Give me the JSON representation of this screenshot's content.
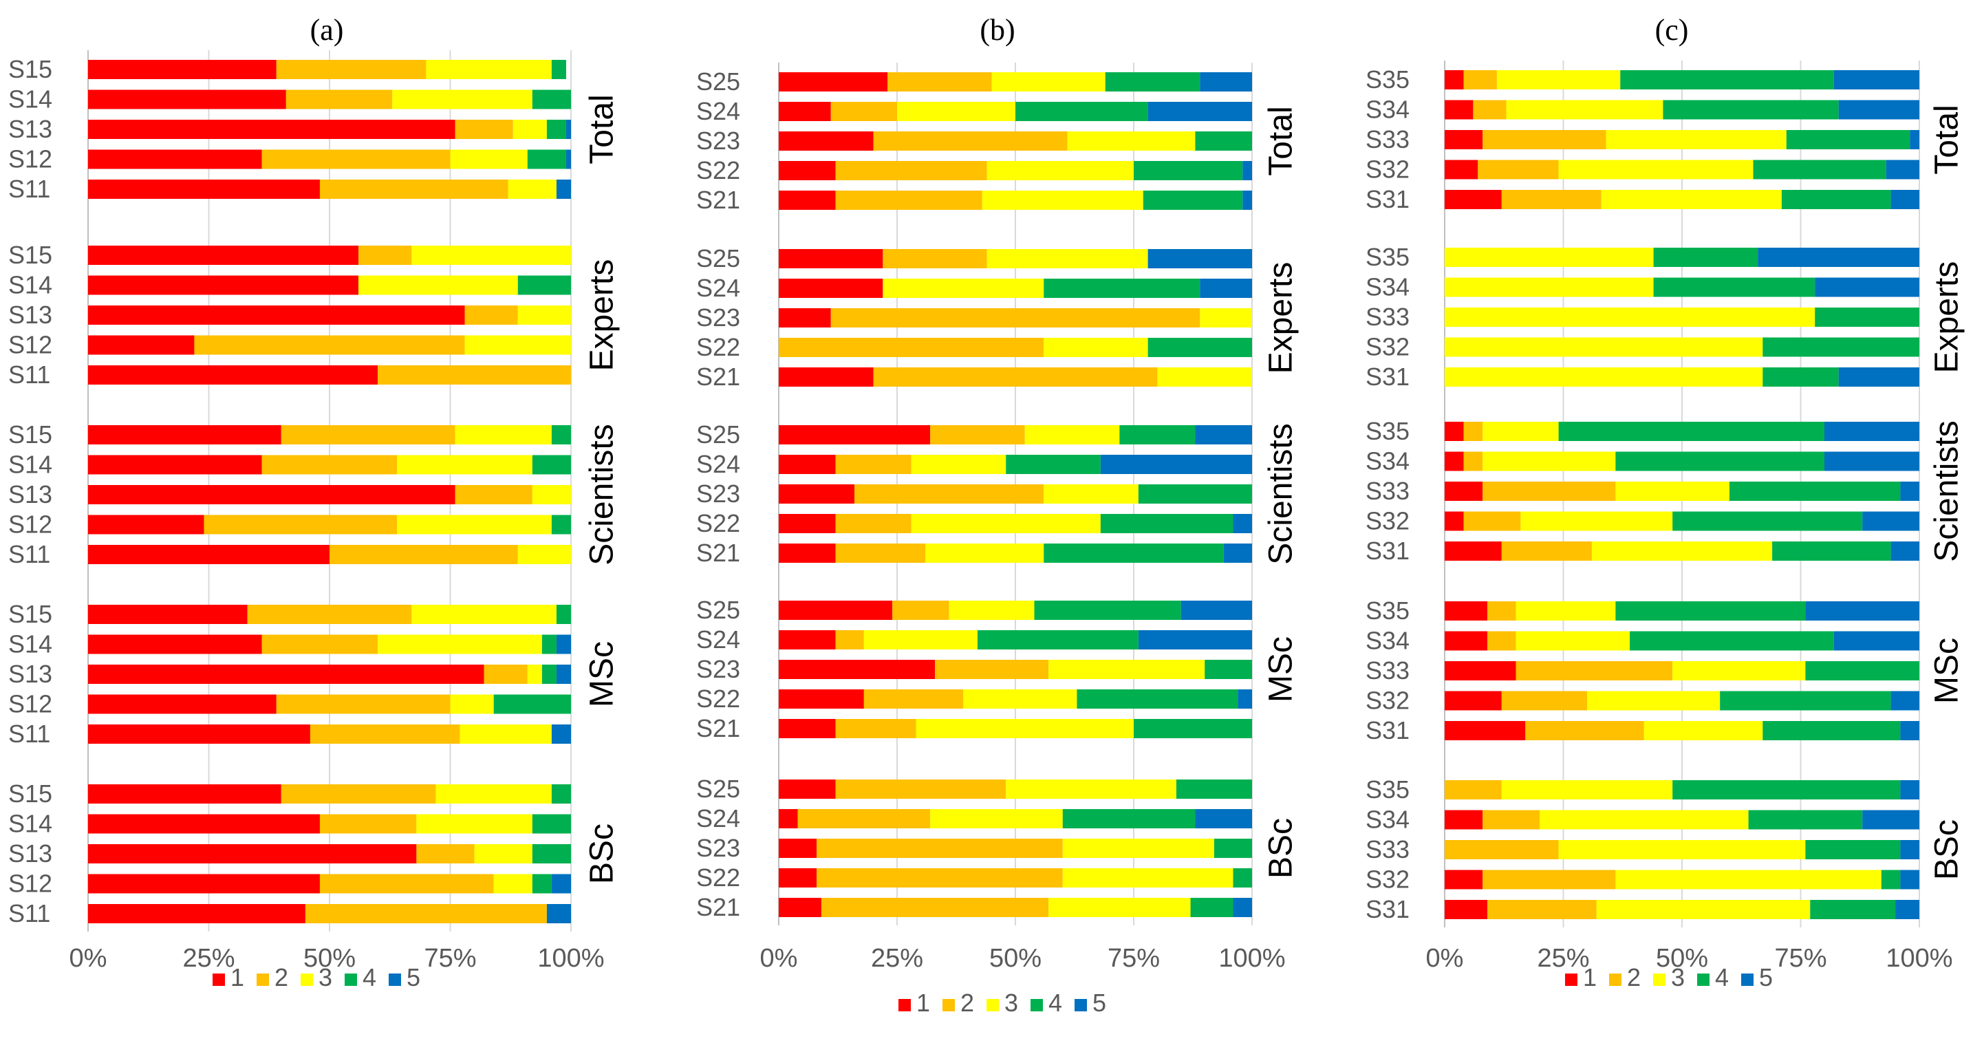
{
  "chart_data": {
    "type": "bar",
    "stacked": "100%",
    "orientation": "horizontal",
    "x_ticks": [
      "0%",
      "25%",
      "50%",
      "75%",
      "100%"
    ],
    "legend": {
      "entries": [
        {
          "name": "1",
          "color": "#ff0000"
        },
        {
          "name": "2",
          "color": "#ffc000"
        },
        {
          "name": "3",
          "color": "#ffff00"
        },
        {
          "name": "4",
          "color": "#00b050"
        },
        {
          "name": "5",
          "color": "#0070c0"
        }
      ],
      "placement": "bottom"
    },
    "panels": [
      {
        "title": "(a)",
        "groups": [
          {
            "name": "Total",
            "bars": [
              {
                "label": "S15",
                "values": [
                  39,
                  31,
                  26,
                  3,
                  0
                ]
              },
              {
                "label": "S14",
                "values": [
                  41,
                  22,
                  29,
                  8,
                  0
                ]
              },
              {
                "label": "S13",
                "values": [
                  76,
                  12,
                  7,
                  4,
                  1
                ]
              },
              {
                "label": "S12",
                "values": [
                  36,
                  39,
                  16,
                  8,
                  1
                ]
              },
              {
                "label": "S11",
                "values": [
                  48,
                  39,
                  10,
                  0,
                  3
                ]
              }
            ]
          },
          {
            "name": "Experts",
            "bars": [
              {
                "label": "S15",
                "values": [
                  56,
                  11,
                  33,
                  0,
                  0
                ]
              },
              {
                "label": "S14",
                "values": [
                  56,
                  0,
                  33,
                  11,
                  0
                ]
              },
              {
                "label": "S13",
                "values": [
                  78,
                  11,
                  11,
                  0,
                  0
                ]
              },
              {
                "label": "S12",
                "values": [
                  22,
                  56,
                  22,
                  0,
                  0
                ]
              },
              {
                "label": "S11",
                "values": [
                  60,
                  40,
                  0,
                  0,
                  0
                ]
              }
            ]
          },
          {
            "name": "Scientists",
            "bars": [
              {
                "label": "S15",
                "values": [
                  40,
                  36,
                  20,
                  4,
                  0
                ]
              },
              {
                "label": "S14",
                "values": [
                  36,
                  28,
                  28,
                  8,
                  0
                ]
              },
              {
                "label": "S13",
                "values": [
                  76,
                  16,
                  8,
                  0,
                  0
                ]
              },
              {
                "label": "S12",
                "values": [
                  24,
                  40,
                  32,
                  4,
                  0
                ]
              },
              {
                "label": "S11",
                "values": [
                  50,
                  39,
                  11,
                  0,
                  0
                ]
              }
            ]
          },
          {
            "name": "MSc",
            "bars": [
              {
                "label": "S15",
                "values": [
                  33,
                  34,
                  30,
                  3,
                  0
                ]
              },
              {
                "label": "S14",
                "values": [
                  36,
                  24,
                  34,
                  3,
                  3
                ]
              },
              {
                "label": "S13",
                "values": [
                  82,
                  9,
                  3,
                  3,
                  3
                ]
              },
              {
                "label": "S12",
                "values": [
                  39,
                  36,
                  9,
                  16,
                  0
                ]
              },
              {
                "label": "S11",
                "values": [
                  46,
                  31,
                  19,
                  0,
                  4
                ]
              }
            ]
          },
          {
            "name": "BSc",
            "bars": [
              {
                "label": "S15",
                "values": [
                  40,
                  32,
                  24,
                  4,
                  0
                ]
              },
              {
                "label": "S14",
                "values": [
                  48,
                  20,
                  24,
                  8,
                  0
                ]
              },
              {
                "label": "S13",
                "values": [
                  68,
                  12,
                  12,
                  8,
                  0
                ]
              },
              {
                "label": "S12",
                "values": [
                  48,
                  36,
                  8,
                  4,
                  4
                ]
              },
              {
                "label": "S11",
                "values": [
                  45,
                  50,
                  0,
                  0,
                  5
                ]
              }
            ]
          }
        ]
      },
      {
        "title": "(b)",
        "groups": [
          {
            "name": "Total",
            "bars": [
              {
                "label": "S25",
                "values": [
                  23,
                  22,
                  24,
                  20,
                  11
                ]
              },
              {
                "label": "S24",
                "values": [
                  11,
                  14,
                  25,
                  28,
                  22
                ]
              },
              {
                "label": "S23",
                "values": [
                  20,
                  41,
                  27,
                  12,
                  0
                ]
              },
              {
                "label": "S22",
                "values": [
                  12,
                  32,
                  31,
                  23,
                  2
                ]
              },
              {
                "label": "S21",
                "values": [
                  12,
                  31,
                  34,
                  21,
                  2
                ]
              }
            ]
          },
          {
            "name": "Experts",
            "bars": [
              {
                "label": "S25",
                "values": [
                  22,
                  22,
                  34,
                  0,
                  22
                ]
              },
              {
                "label": "S24",
                "values": [
                  22,
                  0,
                  34,
                  33,
                  11
                ]
              },
              {
                "label": "S23",
                "values": [
                  11,
                  78,
                  11,
                  0,
                  0
                ]
              },
              {
                "label": "S22",
                "values": [
                  0,
                  56,
                  22,
                  22,
                  0
                ]
              },
              {
                "label": "S21",
                "values": [
                  20,
                  60,
                  20,
                  0,
                  0
                ]
              }
            ]
          },
          {
            "name": "Scientists",
            "bars": [
              {
                "label": "S25",
                "values": [
                  32,
                  20,
                  20,
                  16,
                  12
                ]
              },
              {
                "label": "S24",
                "values": [
                  12,
                  16,
                  20,
                  20,
                  32
                ]
              },
              {
                "label": "S23",
                "values": [
                  16,
                  40,
                  20,
                  24,
                  0
                ]
              },
              {
                "label": "S22",
                "values": [
                  12,
                  16,
                  40,
                  28,
                  4
                ]
              },
              {
                "label": "S21",
                "values": [
                  12,
                  19,
                  25,
                  38,
                  6
                ]
              }
            ]
          },
          {
            "name": "MSc",
            "bars": [
              {
                "label": "S25",
                "values": [
                  24,
                  12,
                  18,
                  31,
                  15
                ]
              },
              {
                "label": "S24",
                "values": [
                  12,
                  6,
                  24,
                  34,
                  24
                ]
              },
              {
                "label": "S23",
                "values": [
                  33,
                  24,
                  33,
                  10,
                  0
                ]
              },
              {
                "label": "S22",
                "values": [
                  18,
                  21,
                  24,
                  34,
                  3
                ]
              },
              {
                "label": "S21",
                "values": [
                  12,
                  17,
                  46,
                  25,
                  0
                ]
              }
            ]
          },
          {
            "name": "BSc",
            "bars": [
              {
                "label": "S25",
                "values": [
                  12,
                  36,
                  36,
                  16,
                  0
                ]
              },
              {
                "label": "S24",
                "values": [
                  4,
                  28,
                  28,
                  28,
                  12
                ]
              },
              {
                "label": "S23",
                "values": [
                  8,
                  52,
                  32,
                  8,
                  0
                ]
              },
              {
                "label": "S22",
                "values": [
                  8,
                  52,
                  36,
                  4,
                  0
                ]
              },
              {
                "label": "S21",
                "values": [
                  9,
                  48,
                  30,
                  9,
                  4
                ]
              }
            ]
          }
        ]
      },
      {
        "title": "(c)",
        "groups": [
          {
            "name": "Total",
            "bars": [
              {
                "label": "S35",
                "values": [
                  4,
                  7,
                  26,
                  45,
                  18
                ]
              },
              {
                "label": "S34",
                "values": [
                  6,
                  7,
                  33,
                  37,
                  17
                ]
              },
              {
                "label": "S33",
                "values": [
                  8,
                  26,
                  38,
                  26,
                  2
                ]
              },
              {
                "label": "S32",
                "values": [
                  7,
                  17,
                  41,
                  28,
                  7
                ]
              },
              {
                "label": "S31",
                "values": [
                  12,
                  21,
                  38,
                  23,
                  6
                ]
              }
            ]
          },
          {
            "name": "Experts",
            "bars": [
              {
                "label": "S35",
                "values": [
                  0,
                  0,
                  44,
                  22,
                  34
                ]
              },
              {
                "label": "S34",
                "values": [
                  0,
                  0,
                  44,
                  34,
                  22
                ]
              },
              {
                "label": "S33",
                "values": [
                  0,
                  0,
                  78,
                  22,
                  0
                ]
              },
              {
                "label": "S32",
                "values": [
                  0,
                  0,
                  67,
                  33,
                  0
                ]
              },
              {
                "label": "S31",
                "values": [
                  0,
                  0,
                  67,
                  16,
                  17
                ]
              }
            ]
          },
          {
            "name": "Scientists",
            "bars": [
              {
                "label": "S35",
                "values": [
                  4,
                  4,
                  16,
                  56,
                  20
                ]
              },
              {
                "label": "S34",
                "values": [
                  4,
                  4,
                  28,
                  44,
                  20
                ]
              },
              {
                "label": "S33",
                "values": [
                  8,
                  28,
                  24,
                  36,
                  4
                ]
              },
              {
                "label": "S32",
                "values": [
                  4,
                  12,
                  32,
                  40,
                  12
                ]
              },
              {
                "label": "S31",
                "values": [
                  12,
                  19,
                  38,
                  25,
                  6
                ]
              }
            ]
          },
          {
            "name": "MSc",
            "bars": [
              {
                "label": "S35",
                "values": [
                  9,
                  6,
                  21,
                  40,
                  24
                ]
              },
              {
                "label": "S34",
                "values": [
                  9,
                  6,
                  24,
                  43,
                  18
                ]
              },
              {
                "label": "S33",
                "values": [
                  15,
                  33,
                  28,
                  24,
                  0
                ]
              },
              {
                "label": "S32",
                "values": [
                  12,
                  18,
                  28,
                  36,
                  6
                ]
              },
              {
                "label": "S31",
                "values": [
                  17,
                  25,
                  25,
                  29,
                  4
                ]
              }
            ]
          },
          {
            "name": "BSc",
            "bars": [
              {
                "label": "S35",
                "values": [
                  0,
                  12,
                  36,
                  48,
                  4
                ]
              },
              {
                "label": "S34",
                "values": [
                  8,
                  12,
                  44,
                  24,
                  12
                ]
              },
              {
                "label": "S33",
                "values": [
                  0,
                  24,
                  52,
                  20,
                  4
                ]
              },
              {
                "label": "S32",
                "values": [
                  8,
                  28,
                  56,
                  4,
                  4
                ]
              },
              {
                "label": "S31",
                "values": [
                  9,
                  23,
                  45,
                  18,
                  5
                ]
              }
            ]
          }
        ]
      }
    ]
  }
}
